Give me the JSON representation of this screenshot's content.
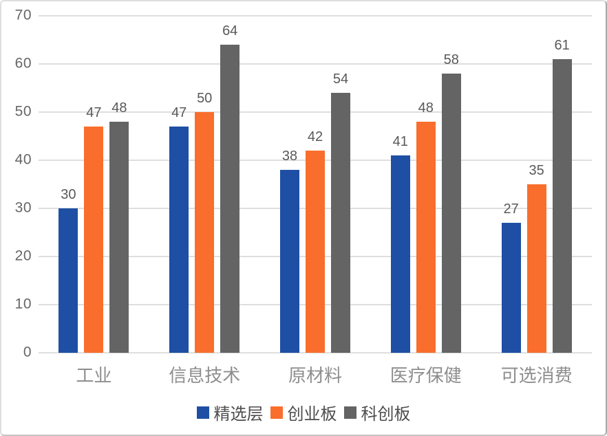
{
  "chart_data": {
    "type": "bar",
    "title": "",
    "xlabel": "",
    "ylabel": "",
    "categories": [
      "工业",
      "信息技术",
      "原材料",
      "医疗保健",
      "可选消费"
    ],
    "series": [
      {
        "name": "精选层",
        "color": "#1E4FA4",
        "values": [
          30,
          47,
          38,
          41,
          27
        ]
      },
      {
        "name": "创业板",
        "color": "#F96E2C",
        "values": [
          47,
          50,
          42,
          48,
          35
        ]
      },
      {
        "name": "科创板",
        "color": "#646464",
        "values": [
          48,
          64,
          54,
          58,
          61
        ]
      }
    ],
    "ylim": [
      0,
      70
    ],
    "yticks": [
      0,
      10,
      20,
      30,
      40,
      50,
      60,
      70
    ],
    "grid": true,
    "data_labels": true,
    "legend_position": "bottom"
  },
  "style": {
    "background": "#FFFFFF",
    "gridline_color": "#DEDEDE",
    "tick_label_color": "#666666",
    "data_label_color": "#595959",
    "category_label_color": "#8E8E8E",
    "legend_text_color": "#4D4D4D",
    "border_color": "#DEDEDE"
  }
}
